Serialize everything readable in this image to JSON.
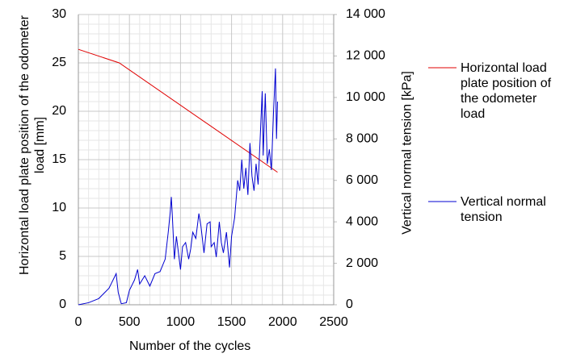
{
  "chart_data": {
    "type": "line",
    "xlabel": "Number of the cycles",
    "ylabel": "Horizontal load plate position of the odometer load [mm]",
    "y2label": "Vertical normal tension [kPa]",
    "xlim": [
      0,
      2500
    ],
    "xticks": [
      0,
      500,
      1000,
      1500,
      2000,
      2500
    ],
    "ylim": [
      0,
      30
    ],
    "yticks": [
      0,
      5,
      10,
      15,
      20,
      25,
      30
    ],
    "y2lim": [
      0,
      14000
    ],
    "y2ticks": [
      0,
      {
        "value": 2000,
        "label": "2 000"
      },
      {
        "value": 4000,
        "label": "4 000"
      },
      {
        "value": 6000,
        "label": "6 000"
      },
      {
        "value": 8000,
        "label": "8 000"
      },
      {
        "value": 10000,
        "label": "10 000"
      },
      {
        "value": 12000,
        "label": "12 000"
      },
      {
        "value": 14000,
        "label": "14 000"
      }
    ],
    "grid": true,
    "minor_grid": true,
    "legend": "right",
    "series": [
      {
        "name": "Horizontal load plate position of the odometer load",
        "color": "#e00000",
        "axis": "y",
        "x": [
          0,
          400,
          1950
        ],
        "values": [
          26.4,
          25,
          13.7
        ]
      },
      {
        "name": "Vertical normal tension",
        "color": "#0000d0",
        "axis": "y2",
        "x": [
          0,
          100,
          200,
          300,
          370,
          390,
          420,
          470,
          500,
          550,
          580,
          600,
          650,
          700,
          750,
          800,
          850,
          880,
          900,
          910,
          920,
          940,
          960,
          1000,
          1020,
          1050,
          1080,
          1100,
          1120,
          1150,
          1180,
          1200,
          1230,
          1260,
          1290,
          1300,
          1330,
          1350,
          1380,
          1400,
          1420,
          1450,
          1480,
          1500,
          1530,
          1560,
          1580,
          1600,
          1620,
          1640,
          1660,
          1680,
          1700,
          1720,
          1740,
          1760,
          1780,
          1800,
          1810,
          1830,
          1850,
          1870,
          1890,
          1910,
          1930,
          1940,
          1950
        ],
        "values": [
          0,
          100,
          300,
          800,
          1500,
          600,
          50,
          100,
          700,
          1200,
          1700,
          1000,
          1400,
          900,
          1500,
          1600,
          2200,
          3500,
          4500,
          5200,
          4300,
          2200,
          3300,
          1700,
          2800,
          3000,
          2200,
          2700,
          3500,
          3200,
          4400,
          3800,
          2500,
          3900,
          4000,
          2800,
          3000,
          2300,
          4000,
          3000,
          2500,
          3500,
          1800,
          3300,
          4200,
          6000,
          5500,
          7000,
          5600,
          6600,
          5300,
          7800,
          6200,
          5500,
          6800,
          5800,
          8000,
          10300,
          7200,
          10200,
          6800,
          7500,
          6500,
          9200,
          11400,
          8000,
          9800
        ]
      }
    ]
  }
}
